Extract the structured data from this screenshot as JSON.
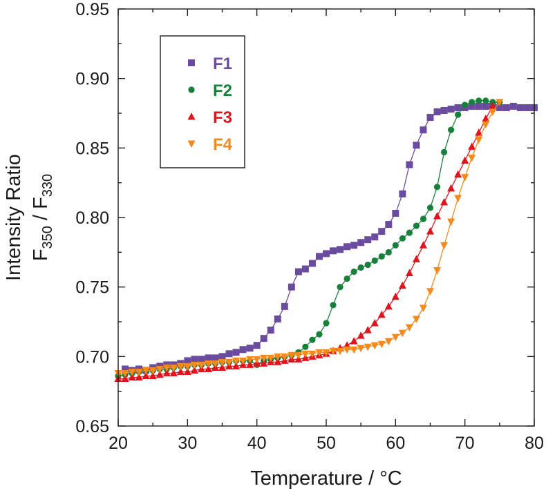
{
  "chart_data": {
    "type": "scatter",
    "title": "",
    "xlabel": "Temperature / °C",
    "ylabel": {
      "line1": "Intensity Ratio",
      "main_a": "F",
      "sub_a": "350",
      "sep": " / F",
      "sub_b": "330"
    },
    "xlim": [
      20,
      80
    ],
    "ylim": [
      0.65,
      0.95
    ],
    "x_ticks": [
      20,
      30,
      40,
      50,
      60,
      70,
      80
    ],
    "y_ticks": [
      0.65,
      0.7,
      0.75,
      0.8,
      0.85,
      0.9,
      0.95
    ],
    "x_tick_labels": [
      "20",
      "30",
      "40",
      "50",
      "60",
      "70",
      "80"
    ],
    "y_tick_labels": [
      "0.65",
      "0.70",
      "0.75",
      "0.80",
      "0.85",
      "0.90",
      "0.95"
    ],
    "grid": false,
    "legend_position": "top-left",
    "series": [
      {
        "name": "F1",
        "color": "#6a4ba0",
        "marker": "square",
        "x": [
          21,
          22,
          23,
          24,
          25,
          26,
          27,
          28,
          29,
          30,
          31,
          32,
          33,
          34,
          35,
          36,
          37,
          38,
          39,
          40,
          41,
          42,
          43,
          44,
          45,
          46,
          47,
          48,
          49,
          50,
          51,
          52,
          53,
          54,
          55,
          56,
          57,
          58,
          59,
          60,
          61,
          62,
          63,
          64,
          65,
          66,
          67,
          68,
          69,
          70,
          71,
          72,
          73,
          74,
          75,
          76,
          77,
          78,
          79,
          80
        ],
        "y": [
          0.691,
          0.69,
          0.691,
          0.69,
          0.692,
          0.693,
          0.694,
          0.694,
          0.695,
          0.697,
          0.698,
          0.698,
          0.699,
          0.699,
          0.7,
          0.702,
          0.703,
          0.705,
          0.706,
          0.708,
          0.713,
          0.719,
          0.727,
          0.736,
          0.75,
          0.761,
          0.763,
          0.767,
          0.772,
          0.774,
          0.776,
          0.777,
          0.779,
          0.78,
          0.782,
          0.784,
          0.786,
          0.79,
          0.795,
          0.803,
          0.817,
          0.838,
          0.852,
          0.863,
          0.872,
          0.876,
          0.877,
          0.878,
          0.879,
          0.879,
          0.88,
          0.88,
          0.88,
          0.88,
          0.879,
          0.879,
          0.88,
          0.879,
          0.879,
          0.879
        ]
      },
      {
        "name": "F2",
        "color": "#17803a",
        "marker": "circle",
        "x": [
          20,
          21,
          22,
          23,
          24,
          25,
          26,
          27,
          28,
          29,
          30,
          31,
          32,
          33,
          34,
          35,
          36,
          37,
          38,
          39,
          40,
          41,
          42,
          43,
          44,
          45,
          46,
          47,
          48,
          49,
          50,
          51,
          52,
          53,
          54,
          55,
          56,
          57,
          58,
          59,
          60,
          61,
          62,
          63,
          64,
          65,
          66,
          67,
          68,
          69,
          70,
          71,
          72,
          73,
          74,
          75
        ],
        "y": [
          0.686,
          0.687,
          0.688,
          0.689,
          0.69,
          0.69,
          0.691,
          0.691,
          0.692,
          0.693,
          0.693,
          0.694,
          0.694,
          0.695,
          0.695,
          0.696,
          0.696,
          0.697,
          0.697,
          0.697,
          0.694,
          0.697,
          0.698,
          0.699,
          0.7,
          0.701,
          0.703,
          0.707,
          0.712,
          0.716,
          0.724,
          0.737,
          0.75,
          0.756,
          0.761,
          0.764,
          0.766,
          0.769,
          0.772,
          0.775,
          0.78,
          0.785,
          0.789,
          0.794,
          0.799,
          0.807,
          0.822,
          0.847,
          0.863,
          0.874,
          0.881,
          0.883,
          0.884,
          0.884,
          0.883,
          0.883
        ]
      },
      {
        "name": "F3",
        "color": "#e0141c",
        "marker": "triangle-up",
        "x": [
          20,
          21,
          22,
          23,
          24,
          25,
          26,
          27,
          28,
          29,
          30,
          31,
          32,
          33,
          34,
          35,
          36,
          37,
          38,
          39,
          40,
          41,
          42,
          43,
          44,
          45,
          46,
          47,
          48,
          49,
          50,
          51,
          52,
          53,
          54,
          55,
          56,
          57,
          58,
          59,
          60,
          61,
          62,
          63,
          64,
          65,
          66,
          67,
          68,
          69,
          70,
          71,
          72,
          73,
          74
        ],
        "y": [
          0.684,
          0.684,
          0.685,
          0.685,
          0.686,
          0.686,
          0.687,
          0.688,
          0.688,
          0.689,
          0.689,
          0.69,
          0.691,
          0.691,
          0.692,
          0.692,
          0.693,
          0.693,
          0.694,
          0.694,
          0.695,
          0.695,
          0.696,
          0.696,
          0.697,
          0.698,
          0.698,
          0.699,
          0.7,
          0.701,
          0.702,
          0.704,
          0.706,
          0.708,
          0.711,
          0.715,
          0.719,
          0.724,
          0.73,
          0.736,
          0.743,
          0.751,
          0.76,
          0.77,
          0.78,
          0.79,
          0.801,
          0.811,
          0.821,
          0.831,
          0.841,
          0.851,
          0.861,
          0.871,
          0.88
        ]
      },
      {
        "name": "F4",
        "color": "#f48a1c",
        "marker": "triangle-down",
        "x": [
          20,
          21,
          22,
          23,
          24,
          25,
          26,
          27,
          28,
          29,
          30,
          31,
          32,
          33,
          34,
          35,
          36,
          37,
          38,
          39,
          40,
          41,
          42,
          43,
          44,
          45,
          46,
          47,
          48,
          49,
          50,
          51,
          52,
          53,
          54,
          55,
          56,
          57,
          58,
          59,
          60,
          61,
          62,
          63,
          64,
          65,
          66,
          67,
          68,
          69,
          70,
          71,
          72,
          73,
          74,
          75
        ],
        "y": [
          0.688,
          0.688,
          0.689,
          0.689,
          0.69,
          0.69,
          0.691,
          0.692,
          0.692,
          0.693,
          0.693,
          0.694,
          0.694,
          0.695,
          0.695,
          0.696,
          0.696,
          0.697,
          0.697,
          0.698,
          0.698,
          0.699,
          0.699,
          0.7,
          0.7,
          0.701,
          0.701,
          0.702,
          0.702,
          0.703,
          0.703,
          0.704,
          0.704,
          0.705,
          0.705,
          0.706,
          0.707,
          0.708,
          0.709,
          0.711,
          0.714,
          0.717,
          0.721,
          0.727,
          0.735,
          0.747,
          0.762,
          0.78,
          0.797,
          0.814,
          0.829,
          0.843,
          0.856,
          0.867,
          0.876,
          0.883
        ]
      }
    ]
  }
}
